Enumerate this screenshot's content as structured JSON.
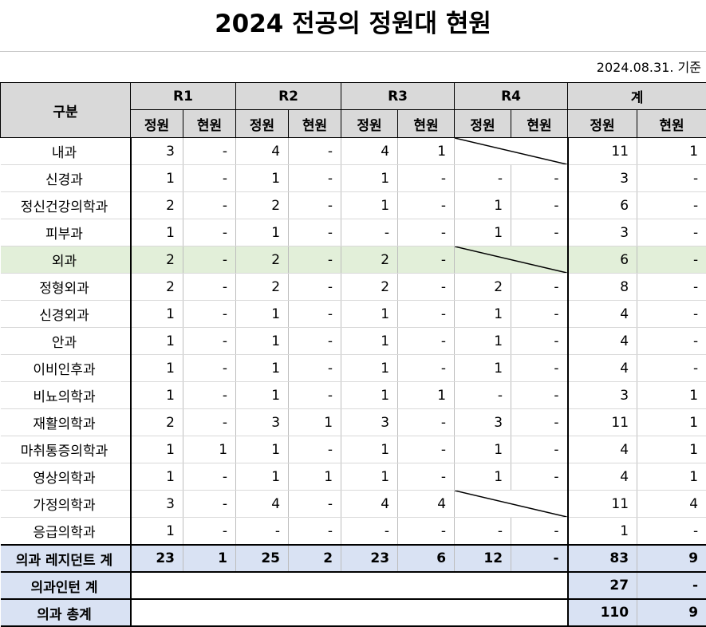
{
  "title": "2024 전공의 정원대 현원",
  "date_note": "2024.08.31. 기준",
  "header": {
    "category": "구분",
    "groups": [
      "R1",
      "R2",
      "R3",
      "R4",
      "계"
    ],
    "sub_quota": "정원",
    "sub_current": "현원"
  },
  "rows": [
    {
      "name": "내과",
      "v": [
        "3",
        "-",
        "4",
        "-",
        "4",
        "1",
        null,
        null,
        "11",
        "1"
      ]
    },
    {
      "name": "신경과",
      "v": [
        "1",
        "-",
        "1",
        "-",
        "1",
        "-",
        "-",
        "-",
        "3",
        "-"
      ]
    },
    {
      "name": "정신건강의학과",
      "v": [
        "2",
        "-",
        "2",
        "-",
        "1",
        "-",
        "1",
        "-",
        "6",
        "-"
      ]
    },
    {
      "name": "피부과",
      "v": [
        "1",
        "-",
        "1",
        "-",
        "-",
        "-",
        "1",
        "-",
        "3",
        "-"
      ]
    },
    {
      "name": "외과",
      "v": [
        "2",
        "-",
        "2",
        "-",
        "2",
        "-",
        null,
        null,
        "6",
        "-"
      ]
    },
    {
      "name": "정형외과",
      "v": [
        "2",
        "-",
        "2",
        "-",
        "2",
        "-",
        "2",
        "-",
        "8",
        "-"
      ]
    },
    {
      "name": "신경외과",
      "v": [
        "1",
        "-",
        "1",
        "-",
        "1",
        "-",
        "1",
        "-",
        "4",
        "-"
      ]
    },
    {
      "name": "안과",
      "v": [
        "1",
        "-",
        "1",
        "-",
        "1",
        "-",
        "1",
        "-",
        "4",
        "-"
      ]
    },
    {
      "name": "이비인후과",
      "v": [
        "1",
        "-",
        "1",
        "-",
        "1",
        "-",
        "1",
        "-",
        "4",
        "-"
      ]
    },
    {
      "name": "비뇨의학과",
      "v": [
        "1",
        "-",
        "1",
        "-",
        "1",
        "1",
        "-",
        "-",
        "3",
        "1"
      ]
    },
    {
      "name": "재활의학과",
      "v": [
        "2",
        "-",
        "3",
        "1",
        "3",
        "-",
        "3",
        "-",
        "11",
        "1"
      ]
    },
    {
      "name": "마취통증의학과",
      "v": [
        "1",
        "1",
        "1",
        "-",
        "1",
        "-",
        "1",
        "-",
        "4",
        "1"
      ]
    },
    {
      "name": "영상의학과",
      "v": [
        "1",
        "-",
        "1",
        "1",
        "1",
        "-",
        "1",
        "-",
        "4",
        "1"
      ]
    },
    {
      "name": "가정의학과",
      "v": [
        "3",
        "-",
        "4",
        "-",
        "4",
        "4",
        null,
        null,
        "11",
        "4"
      ]
    },
    {
      "name": "응급의학과",
      "v": [
        "1",
        "-",
        "-",
        "-",
        "-",
        "-",
        "-",
        "-",
        "1",
        "-"
      ]
    }
  ],
  "resident_total": {
    "name": "의과 레지던트 계",
    "v": [
      "23",
      "1",
      "25",
      "2",
      "23",
      "6",
      "12",
      "-",
      "83",
      "9"
    ]
  },
  "intern_total": {
    "name": "의과인턴 계",
    "quota": "27",
    "current": "-"
  },
  "grand_total": {
    "name": "의과 총계",
    "quota": "110",
    "current": "9"
  },
  "colors": {
    "header_bg": "#d9d9d9",
    "highlight_row": "#e2efd9",
    "total_bg": "#d9e2f3"
  }
}
